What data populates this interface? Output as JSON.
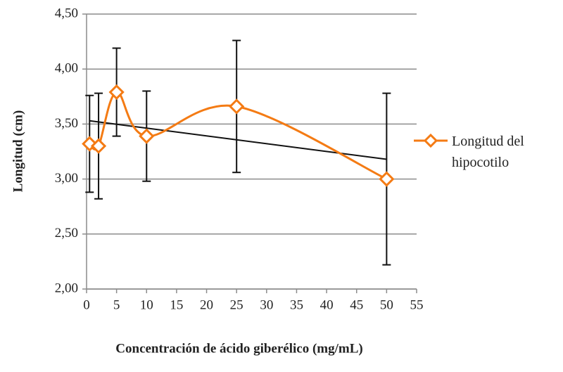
{
  "chart_data": {
    "type": "scatter",
    "x_label": "Concentración  de ácido giberélico (mg/mL)",
    "y_label": "Longitud  (cm)",
    "x": [
      0.5,
      2,
      5,
      10,
      25,
      50
    ],
    "series": [
      {
        "name": "Longitud del hipocotilo",
        "color": "#f47b14",
        "values": [
          3.32,
          3.3,
          3.79,
          3.39,
          3.66,
          3.0
        ],
        "errors": [
          0.44,
          0.48,
          0.4,
          0.41,
          0.6,
          0.78
        ]
      }
    ],
    "trendline": {
      "color": "#111111",
      "x": [
        0.5,
        50
      ],
      "values": [
        3.53,
        3.18
      ]
    },
    "smooth": true,
    "xlim": [
      0,
      55
    ],
    "ylim": [
      2,
      4.5
    ],
    "xticks": [
      0,
      5,
      10,
      15,
      20,
      25,
      30,
      35,
      40,
      45,
      50,
      55
    ],
    "yticks": [
      {
        "value": 2,
        "label": "2,00"
      },
      {
        "value": 2.5,
        "label": "2,50"
      },
      {
        "value": 3,
        "label": "3,00"
      },
      {
        "value": 3.5,
        "label": "3,50"
      },
      {
        "value": 4,
        "label": "4,00"
      },
      {
        "value": 4.5,
        "label": "4,50"
      }
    ],
    "grid": true,
    "legend": "right"
  }
}
